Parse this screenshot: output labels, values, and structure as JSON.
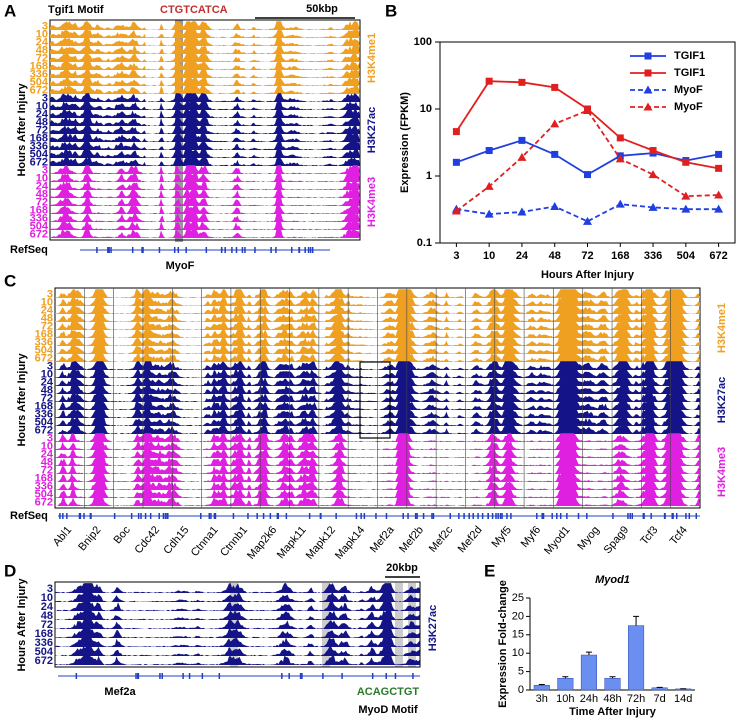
{
  "hours": [
    "3",
    "10",
    "24",
    "48",
    "72",
    "168",
    "336",
    "504",
    "672"
  ],
  "panels": {
    "A": {
      "letter": "A",
      "motif_label": "Tgif1 Motif",
      "motif": "CTGTCATCA",
      "scale": "50kbp",
      "y_label": "Hours After Injury",
      "marks": [
        "H3K4me1",
        "H3K27ac",
        "H3K4me3"
      ],
      "refseq": "RefSeq",
      "gene": "MyoF"
    },
    "C": {
      "letter": "C",
      "y_label": "Hours After Injury",
      "marks": [
        "H3K4me1",
        "H3K27ac",
        "H3K4me3"
      ],
      "refseq": "RefSeq",
      "genes": [
        "Abl1",
        "Bnip2",
        "Boc",
        "Cdc42",
        "Cdh15",
        "Ctnna1",
        "Ctnnb1",
        "Map2k6",
        "Mapk11",
        "Mapk12",
        "Mapk14",
        "Mef2a",
        "Mef2b",
        "Mef2c",
        "Mef2d",
        "Myf5",
        "Myf6",
        "Myod1",
        "Myog",
        "Spag9",
        "Tcf3",
        "Tcf4"
      ]
    },
    "D": {
      "letter": "D",
      "y_label": "Hours After Injury",
      "mark": "H3K27ac",
      "scale": "20kbp",
      "gene": "Mef2a",
      "motif": "ACAGCTGT",
      "motif_label": "MyoD Motif"
    }
  },
  "chart_data": [
    {
      "type": "line",
      "panel_label": "B",
      "y_label": "Expression (FPKM)",
      "x_label": "Hours After Injury",
      "categories": [
        "3",
        "10",
        "24",
        "48",
        "72",
        "168",
        "336",
        "504",
        "672"
      ],
      "log_scale": true,
      "ylim": [
        0.1,
        100
      ],
      "yticks": [
        0.1,
        1,
        10,
        100
      ],
      "legend": "top-right",
      "series": [
        {
          "name": "TGIF1",
          "color": "#1f3fe0",
          "marker": "square",
          "dashed": false,
          "values": [
            1.6,
            2.4,
            3.4,
            2.1,
            1.05,
            2.0,
            2.2,
            1.7,
            2.1
          ]
        },
        {
          "name": "TGIF1",
          "color": "#e02020",
          "marker": "square",
          "dashed": false,
          "values": [
            4.6,
            26,
            25,
            21,
            10,
            3.7,
            2.4,
            1.6,
            1.3
          ]
        },
        {
          "name": "MyoF",
          "color": "#1f3fe0",
          "marker": "triangle",
          "dashed": true,
          "values": [
            0.32,
            0.27,
            0.29,
            0.35,
            0.21,
            0.38,
            0.34,
            0.32,
            0.32
          ]
        },
        {
          "name": "MyoF",
          "color": "#e02020",
          "marker": "triangle",
          "dashed": true,
          "values": [
            0.3,
            0.7,
            1.9,
            6,
            9.5,
            1.8,
            1.05,
            0.5,
            0.52
          ]
        }
      ]
    },
    {
      "type": "bar",
      "panel_label": "E",
      "title": "Myod1",
      "y_label": "Expression Fold-change",
      "x_label": "Time After Injury",
      "categories": [
        "3h",
        "10h",
        "24h",
        "48h",
        "72h",
        "7d",
        "14d"
      ],
      "values": [
        1.3,
        3.2,
        9.5,
        3.2,
        17.5,
        0.6,
        0.3
      ],
      "errors": [
        0.2,
        0.4,
        0.8,
        0.4,
        2.5,
        0.1,
        0.05
      ],
      "color": "#6a8ff0",
      "ylim": [
        0,
        25
      ],
      "yticks": [
        0,
        5,
        10,
        15,
        20,
        25
      ]
    }
  ]
}
